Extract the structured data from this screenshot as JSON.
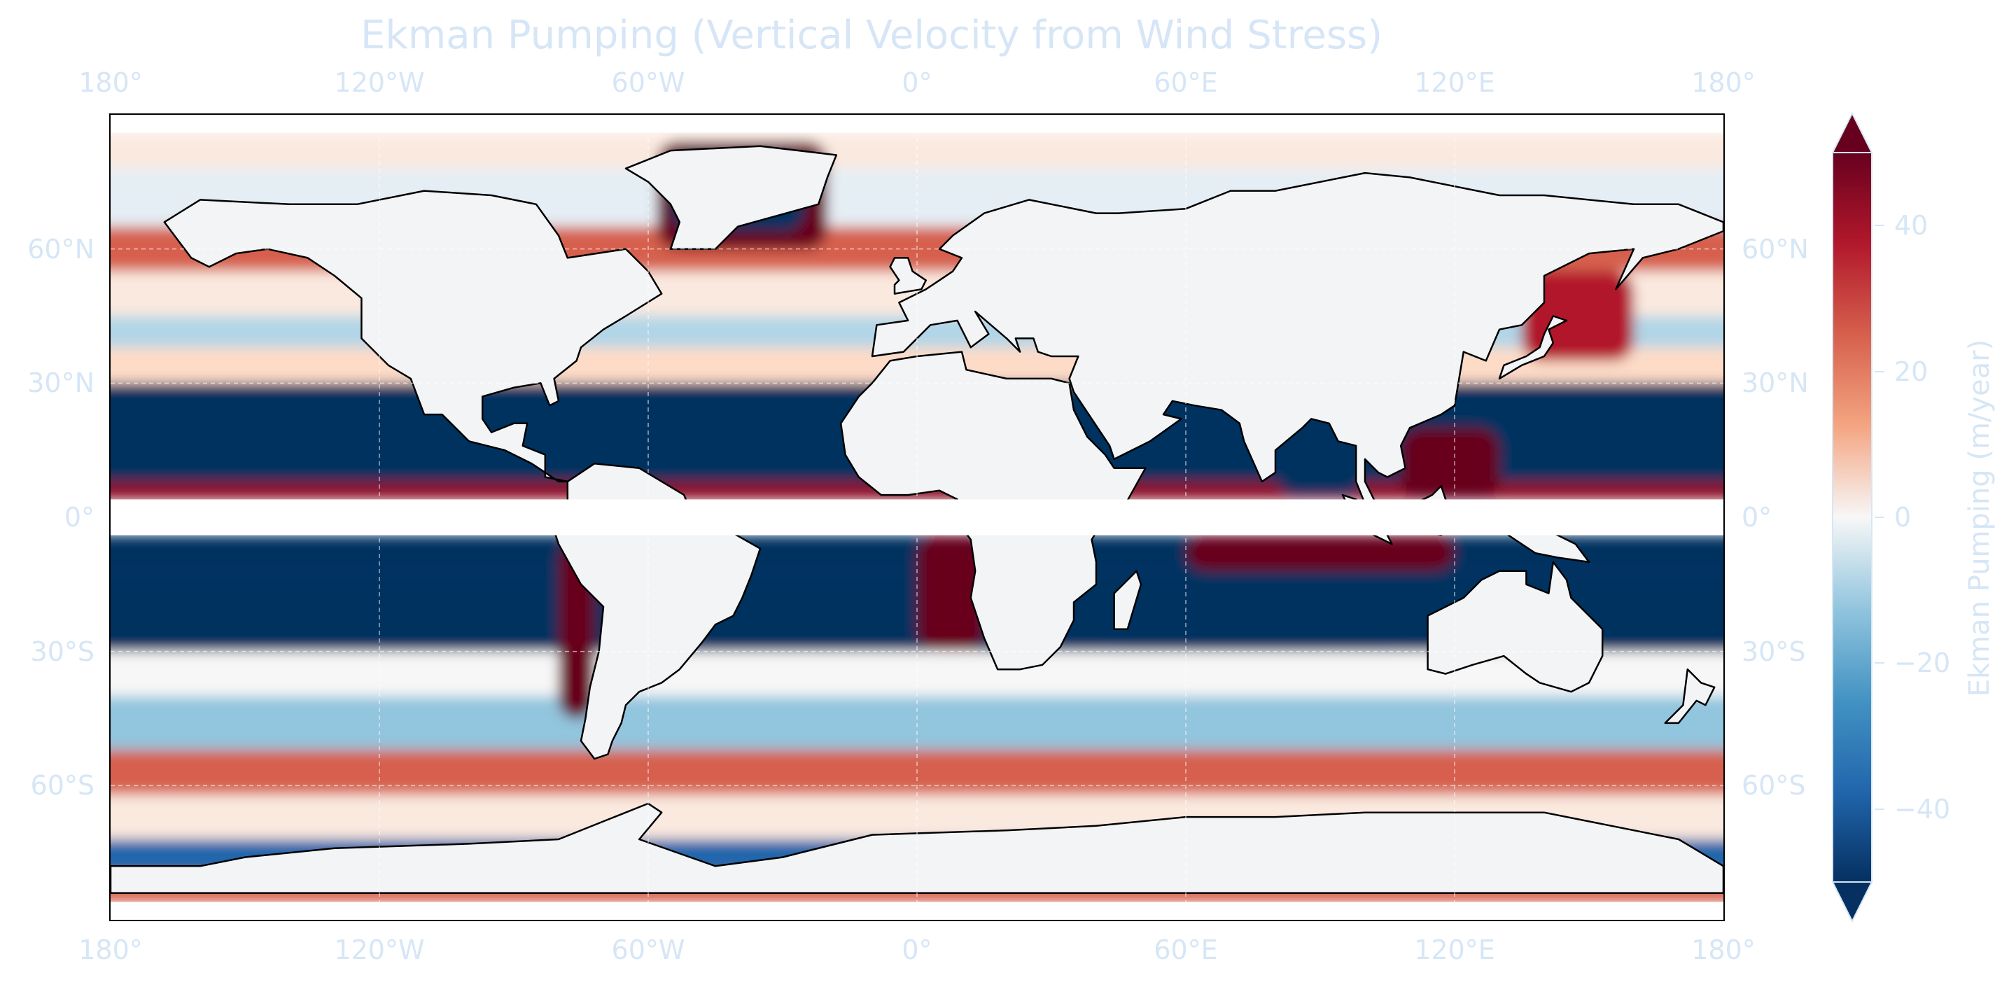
{
  "title": "Ekman Pumping (Vertical Velocity from Wind Stress)",
  "lon_ticks": [
    {
      "value": -180,
      "label": "180°"
    },
    {
      "value": -120,
      "label": "120°W"
    },
    {
      "value": -60,
      "label": "60°W"
    },
    {
      "value": 0,
      "label": "0°"
    },
    {
      "value": 60,
      "label": "60°E"
    },
    {
      "value": 120,
      "label": "120°E"
    },
    {
      "value": 180,
      "label": "180°"
    }
  ],
  "lat_ticks": [
    {
      "value": 60,
      "label": "60°N"
    },
    {
      "value": 30,
      "label": "30°N"
    },
    {
      "value": 0,
      "label": "0°"
    },
    {
      "value": -30,
      "label": "30°S"
    },
    {
      "value": -60,
      "label": "60°S"
    }
  ],
  "colorbar": {
    "label": "Ekman Pumping (m/year)",
    "min": -50,
    "max": 50,
    "cmap": "RdBu_r",
    "extend": "both",
    "ticks": [
      {
        "value": 40,
        "label": "40"
      },
      {
        "value": 20,
        "label": "20"
      },
      {
        "value": 0,
        "label": "0"
      },
      {
        "value": -20,
        "label": "−20"
      },
      {
        "value": -40,
        "label": "−40"
      }
    ]
  },
  "colors": {
    "deep_red": "#67001f",
    "red": "#b2182b",
    "light_red": "#f4a582",
    "white": "#f7f7f7",
    "light_blue": "#92c5de",
    "blue": "#2166ac",
    "deep_blue": "#053061",
    "label_color": "#d6e6f6",
    "coast": "#000000"
  },
  "chart_data": {
    "type": "heatmap",
    "projection": "PlateCarree",
    "lon_range": [
      -180,
      180
    ],
    "lat_range": [
      -90,
      90
    ],
    "data_lat_range": [
      -86,
      86
    ],
    "equatorial_mask_lat": [
      -4,
      4
    ],
    "grid": true,
    "title": "Ekman Pumping (Vertical Velocity from Wind Stress)",
    "zonal_bands": [
      {
        "lat": [
          78,
          86
        ],
        "value": 5
      },
      {
        "lat": [
          65,
          78
        ],
        "value": -5
      },
      {
        "lat": [
          55,
          65
        ],
        "value": 30
      },
      {
        "lat": [
          45,
          55
        ],
        "value": 5
      },
      {
        "lat": [
          38,
          45
        ],
        "value": -15
      },
      {
        "lat": [
          30,
          38
        ],
        "value": 10
      },
      {
        "lat": [
          8,
          30
        ],
        "value": -50
      },
      {
        "lat": [
          4,
          8
        ],
        "value": 45
      },
      {
        "lat": [
          -12,
          -4
        ],
        "value": -50
      },
      {
        "lat": [
          -30,
          -12
        ],
        "value": -50
      },
      {
        "lat": [
          -40,
          -30
        ],
        "value": 0
      },
      {
        "lat": [
          -52,
          -40
        ],
        "value": -20
      },
      {
        "lat": [
          -62,
          -52
        ],
        "value": 30
      },
      {
        "lat": [
          -72,
          -62
        ],
        "value": 5
      },
      {
        "lat": [
          -80,
          -72
        ],
        "value": -40
      },
      {
        "lat": [
          -86,
          -80
        ],
        "value": 30
      }
    ],
    "regional_features": [
      {
        "name": "Greenland interior",
        "lon": [
          -55,
          -25
        ],
        "lat": [
          64,
          82
        ],
        "value": -50
      },
      {
        "name": "Greenland rim",
        "lon": [
          -58,
          -20
        ],
        "lat": [
          60,
          84
        ],
        "value": 50
      },
      {
        "name": "South Indian Ocean",
        "lon": [
          40,
          110
        ],
        "lat": [
          -30,
          -14
        ],
        "value": -50
      },
      {
        "name": "East Indian Ocean upwelling",
        "lon": [
          60,
          120
        ],
        "lat": [
          -12,
          -4
        ],
        "value": 50
      },
      {
        "name": "Benguela",
        "lon": [
          0,
          15
        ],
        "lat": [
          -30,
          -4
        ],
        "value": 50
      },
      {
        "name": "Bay of Bengal",
        "lon": [
          80,
          100
        ],
        "lat": [
          5,
          22
        ],
        "value": -50
      },
      {
        "name": "South China Sea",
        "lon": [
          108,
          130
        ],
        "lat": [
          4,
          20
        ],
        "value": 50
      },
      {
        "name": "Kuroshio",
        "lon": [
          135,
          160
        ],
        "lat": [
          35,
          55
        ],
        "value": 40
      },
      {
        "name": "Humboldt coast",
        "lon": [
          -80,
          -72
        ],
        "lat": [
          -45,
          -5
        ],
        "value": 50
      }
    ]
  }
}
